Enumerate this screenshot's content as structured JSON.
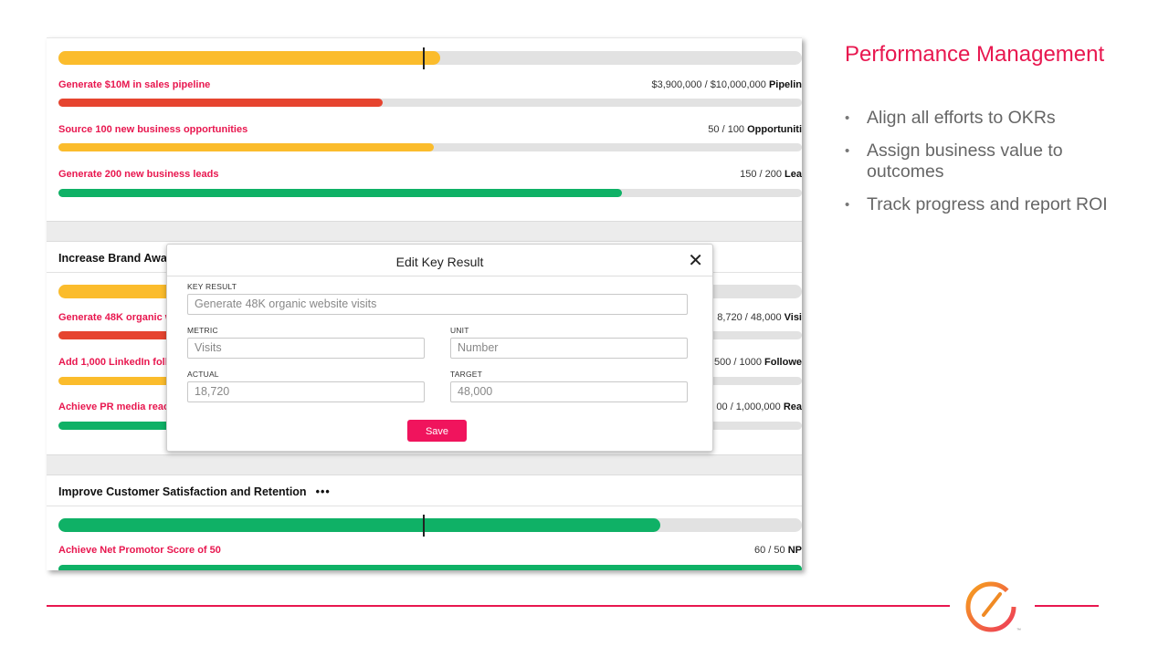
{
  "colors": {
    "accent": "#e8174f",
    "yellow": "#fbbc2c",
    "red": "#e6442f",
    "green": "#0fb166",
    "save": "#f0145d"
  },
  "objective1": {
    "progress": 0.5,
    "key_results": [
      {
        "label": "Generate $10M in sales pipeline",
        "metric": "$3,900,000 / $10,000,000",
        "unit": "Pipelin",
        "progress": 0.39,
        "color": "red"
      },
      {
        "label": "Source 100 new business opportunities",
        "metric": "50 / 100",
        "unit": "Opportuniti",
        "progress": 0.5,
        "color": "yellow"
      },
      {
        "label": "Generate 200 new business leads",
        "metric": "150 / 200",
        "unit": "Lea",
        "progress": 0.75,
        "color": "green"
      }
    ]
  },
  "objective2": {
    "title": "Increase Brand Awar",
    "key_results": [
      {
        "label": "Generate 48K organic w",
        "metric": "8,720 / 48,000",
        "unit": "Visi"
      },
      {
        "label": "Add 1,000 LinkedIn foll",
        "metric": "500 / 1000",
        "unit": "Followe"
      },
      {
        "label": "Achieve PR media reac",
        "metric": "00 / 1,000,000",
        "unit": "Rea"
      }
    ]
  },
  "objective3": {
    "title": "Improve Customer Satisfaction and Retention",
    "menu": "•••",
    "progress": 0.8,
    "key_results": [
      {
        "label": "Achieve Net Promotor Score of 50",
        "metric": "60 / 50",
        "unit": "NP",
        "progress": 1.0,
        "color": "green"
      }
    ]
  },
  "modal": {
    "title": "Edit Key Result",
    "close": "✕",
    "key_result_label": "KEY RESULT",
    "key_result_value": "Generate 48K organic website visits",
    "metric_label": "METRIC",
    "metric_value": "Visits",
    "unit_label": "UNIT",
    "unit_value": "Number",
    "actual_label": "ACTUAL",
    "actual_value": "18,720",
    "target_label": "TARGET",
    "target_value": "48,000",
    "save_label": "Save"
  },
  "slide": {
    "heading": "Performance Management",
    "bullets": [
      "Align all efforts to OKRs",
      "Assign business value to outcomes",
      "Track progress and report ROI"
    ],
    "logo_icon": "speedometer-icon",
    "tm": "™"
  }
}
